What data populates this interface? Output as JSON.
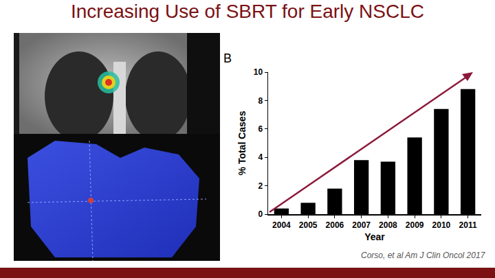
{
  "chart_data": {
    "type": "bar",
    "title": "Increasing Use of SBRT for Early NSCLC",
    "x_label": "Year",
    "y_label": "% Total Cases",
    "categories": [
      "2004",
      "2005",
      "2006",
      "2007",
      "2008",
      "2009",
      "2010",
      "2011"
    ],
    "values": [
      0.4,
      0.8,
      1.8,
      3.8,
      3.7,
      5.4,
      7.4,
      8.8
    ],
    "color": "#000000",
    "ylim": [
      0,
      10
    ],
    "yticks": [
      0,
      2,
      4,
      6,
      8,
      10
    ],
    "grid": false,
    "annotations": [
      "B",
      "Corso, et al Am J Clin Oncol 2017"
    ]
  }
}
